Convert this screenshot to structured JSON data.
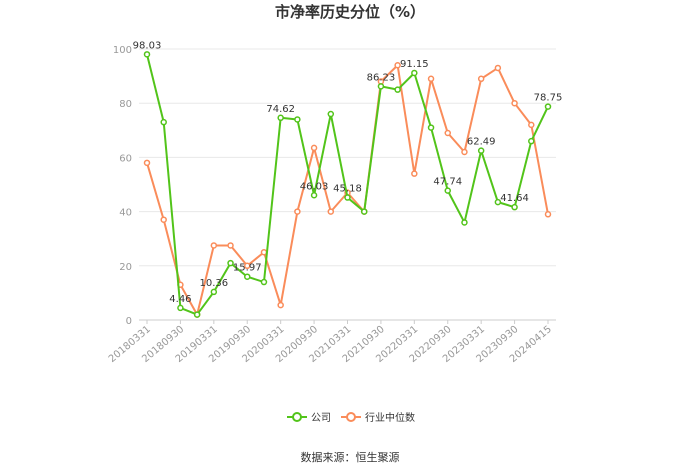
{
  "chart_data": {
    "type": "line",
    "title": "市净率历史分位（%）",
    "source": "数据来源：恒生聚源",
    "ylim": [
      0,
      100
    ],
    "yticks": [
      0,
      20,
      40,
      60,
      80,
      100
    ],
    "grid": true,
    "legend_position": "bottom",
    "x_tick_labels": [
      "20180331",
      "20180930",
      "20190331",
      "20190930",
      "20200331",
      "20200930",
      "20210331",
      "20210930",
      "20220331",
      "20220930",
      "20230331",
      "20230930",
      "20240415"
    ],
    "x": [
      "20180331",
      "20180630",
      "20180930",
      "20181231",
      "20190331",
      "20190630",
      "20190930",
      "20191231",
      "20200331",
      "20200630",
      "20200930",
      "20201231",
      "20210331",
      "20210630",
      "20210930",
      "20211231",
      "20220331",
      "20220630",
      "20220930",
      "20221231",
      "20230331",
      "20230630",
      "20230930",
      "20231231",
      "20240415"
    ],
    "series": [
      {
        "name": "公司",
        "color": "#52c41a",
        "values": [
          98.03,
          73,
          4.46,
          2,
          10.36,
          21,
          15.97,
          14,
          74.62,
          74,
          46.03,
          76,
          45.18,
          40,
          86.23,
          85,
          91.15,
          71,
          47.74,
          36,
          62.49,
          43.5,
          41.64,
          66,
          78.75
        ],
        "labels": {
          "0": "98.03",
          "2": "4.46",
          "4": "10.36",
          "6": "15.97",
          "8": "74.62",
          "10": "46.03",
          "12": "45.18",
          "14": "86.23",
          "16": "91.15",
          "18": "47.74",
          "20": "62.49",
          "22": "41.64",
          "24": "78.75"
        }
      },
      {
        "name": "行业中位数",
        "color": "#fa8c5a",
        "values": [
          58,
          37,
          13,
          2,
          27.5,
          27.5,
          20,
          25,
          5.5,
          40,
          63.5,
          40,
          47,
          40,
          88,
          94,
          54,
          89,
          69,
          62,
          89,
          93,
          80,
          72,
          39
        ],
        "labels": {}
      }
    ]
  }
}
